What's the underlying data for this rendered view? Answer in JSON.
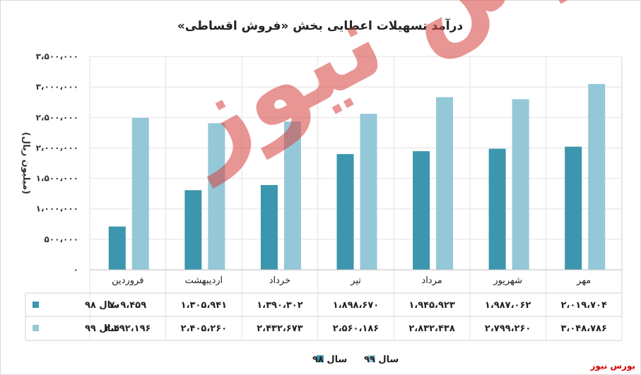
{
  "chart_data": {
    "type": "bar",
    "title": "درآمد تسهیلات اعطایی بخش «فروش اقساطی»",
    "ylabel": "(میلیون ریال)",
    "ylim": [
      0,
      3500000
    ],
    "yticks": [
      "۰",
      "۵۰۰،۰۰۰",
      "۱،۰۰۰،۰۰۰",
      "۱،۵۰۰،۰۰۰",
      "۲،۰۰۰،۰۰۰",
      "۲،۵۰۰،۰۰۰",
      "۳،۰۰۰،۰۰۰",
      "۳،۵۰۰،۰۰۰"
    ],
    "categories": [
      "فروردین",
      "اردیبهشت",
      "خرداد",
      "تیر",
      "مرداد",
      "شهریور",
      "مهر"
    ],
    "series": [
      {
        "name": "سال ۹۸",
        "color": "#3b96ae",
        "values": [
          709459,
          1305941,
          1390302,
          1898670,
          1945923,
          1987062,
          2019704
        ],
        "labels": [
          "۷۰۹،۴۵۹",
          "۱،۳۰۵،۹۴۱",
          "۱،۳۹۰،۳۰۲",
          "۱،۸۹۸،۶۷۰",
          "۱،۹۴۵،۹۲۳",
          "۱،۹۸۷،۰۶۲",
          "۲،۰۱۹،۷۰۴"
        ]
      },
      {
        "name": "سال ۹۹",
        "color": "#94c8d9",
        "values": [
          2492196,
          2405260,
          2432673,
          2560186,
          2832438,
          2799260,
          3048786
        ],
        "labels": [
          "۲،۴۹۲،۱۹۶",
          "۲،۴۰۵،۲۶۰",
          "۲،۴۳۲،۶۷۳",
          "۲،۵۶۰،۱۸۶",
          "۲،۸۳۲،۴۳۸",
          "۲،۷۹۹،۲۶۰",
          "۳،۰۴۸،۷۸۶"
        ]
      }
    ],
    "grid": true,
    "legend_placement": "bottom",
    "data_table": true
  },
  "watermark": "بورس نیوز",
  "brand": "بورس نیوز"
}
